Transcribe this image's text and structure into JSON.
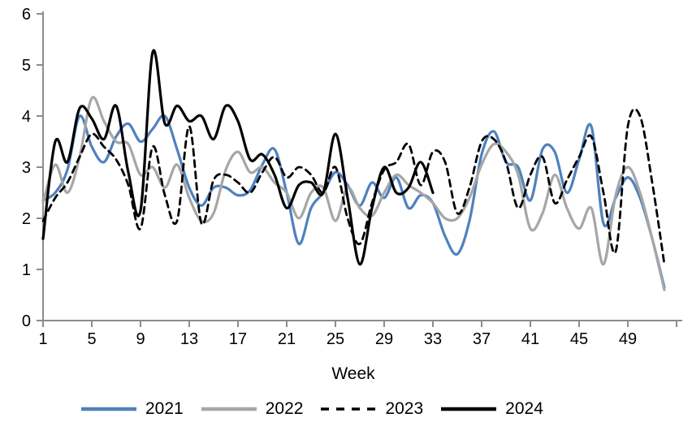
{
  "chart_data": {
    "type": "line",
    "title": "",
    "xlabel": "Week",
    "ylabel": "",
    "xlim": [
      1,
      53
    ],
    "ylim": [
      0,
      6
    ],
    "grid": false,
    "legend_position": "bottom",
    "axis_color": "#8c8c8c",
    "x_ticks": [
      1,
      5,
      9,
      13,
      17,
      21,
      25,
      29,
      33,
      37,
      41,
      45,
      49
    ],
    "y_ticks": [
      0,
      1,
      2,
      3,
      4,
      5,
      6
    ],
    "weeks": [
      1,
      2,
      3,
      4,
      5,
      6,
      7,
      8,
      9,
      10,
      11,
      12,
      13,
      14,
      15,
      16,
      17,
      18,
      19,
      20,
      21,
      22,
      23,
      24,
      25,
      26,
      27,
      28,
      29,
      30,
      31,
      32,
      33,
      34,
      35,
      36,
      37,
      38,
      39,
      40,
      41,
      42,
      43,
      44,
      45,
      46,
      47,
      48,
      49,
      50,
      51,
      52
    ],
    "series": [
      {
        "name": "2021",
        "color": "#4f81bd",
        "style": "solid",
        "values": [
          2.35,
          2.5,
          2.95,
          4.0,
          3.4,
          3.1,
          3.6,
          3.85,
          3.5,
          3.75,
          4.0,
          3.35,
          2.6,
          2.25,
          2.6,
          2.6,
          2.45,
          2.55,
          3.05,
          3.35,
          2.5,
          1.5,
          2.2,
          2.5,
          2.9,
          2.65,
          2.25,
          2.7,
          2.4,
          2.8,
          2.2,
          2.45,
          2.3,
          1.65,
          1.3,
          1.95,
          3.25,
          3.7,
          3.1,
          3.0,
          2.35,
          3.35,
          3.3,
          2.5,
          3.15,
          3.8,
          1.9,
          2.4,
          2.8,
          2.4,
          1.6,
          0.65
        ]
      },
      {
        "name": "2022",
        "color": "#a6a6a6",
        "style": "solid",
        "values": [
          2.3,
          3.05,
          2.5,
          3.2,
          4.35,
          3.9,
          3.5,
          3.45,
          2.85,
          3.0,
          2.6,
          3.05,
          2.4,
          1.95,
          2.1,
          2.95,
          3.3,
          2.9,
          3.0,
          2.7,
          2.5,
          2.0,
          2.5,
          2.6,
          1.95,
          2.6,
          2.2,
          2.05,
          2.5,
          2.85,
          2.65,
          2.5,
          2.3,
          2.0,
          2.0,
          2.4,
          3.05,
          3.45,
          3.3,
          2.85,
          1.8,
          2.1,
          2.85,
          2.2,
          1.8,
          2.2,
          1.1,
          2.45,
          3.0,
          2.5,
          1.6,
          0.6
        ]
      },
      {
        "name": "2023",
        "color": "#000000",
        "style": "dashed",
        "values": [
          1.95,
          2.4,
          2.7,
          3.2,
          3.65,
          3.4,
          3.15,
          2.65,
          1.8,
          3.4,
          2.45,
          1.95,
          3.8,
          1.9,
          2.75,
          2.85,
          2.7,
          2.5,
          2.9,
          3.2,
          2.8,
          3.0,
          2.85,
          2.5,
          3.0,
          2.0,
          1.5,
          2.3,
          2.95,
          3.1,
          3.45,
          2.65,
          3.3,
          3.1,
          2.1,
          2.6,
          3.5,
          3.55,
          3.1,
          2.2,
          2.85,
          3.2,
          2.3,
          2.75,
          3.2,
          3.6,
          2.5,
          1.35,
          3.8,
          4.0,
          2.7,
          1.1
        ]
      },
      {
        "name": "2024",
        "color": "#000000",
        "style": "solid",
        "values": [
          1.6,
          3.5,
          3.1,
          4.15,
          3.95,
          3.55,
          4.2,
          2.9,
          2.15,
          5.25,
          3.85,
          4.2,
          3.9,
          4.0,
          3.55,
          4.2,
          3.9,
          3.15,
          3.25,
          2.85,
          2.2,
          2.65,
          2.7,
          2.5,
          3.65,
          2.4,
          1.1,
          2.2,
          3.0,
          2.5,
          2.6,
          3.1,
          2.5
        ]
      }
    ]
  }
}
